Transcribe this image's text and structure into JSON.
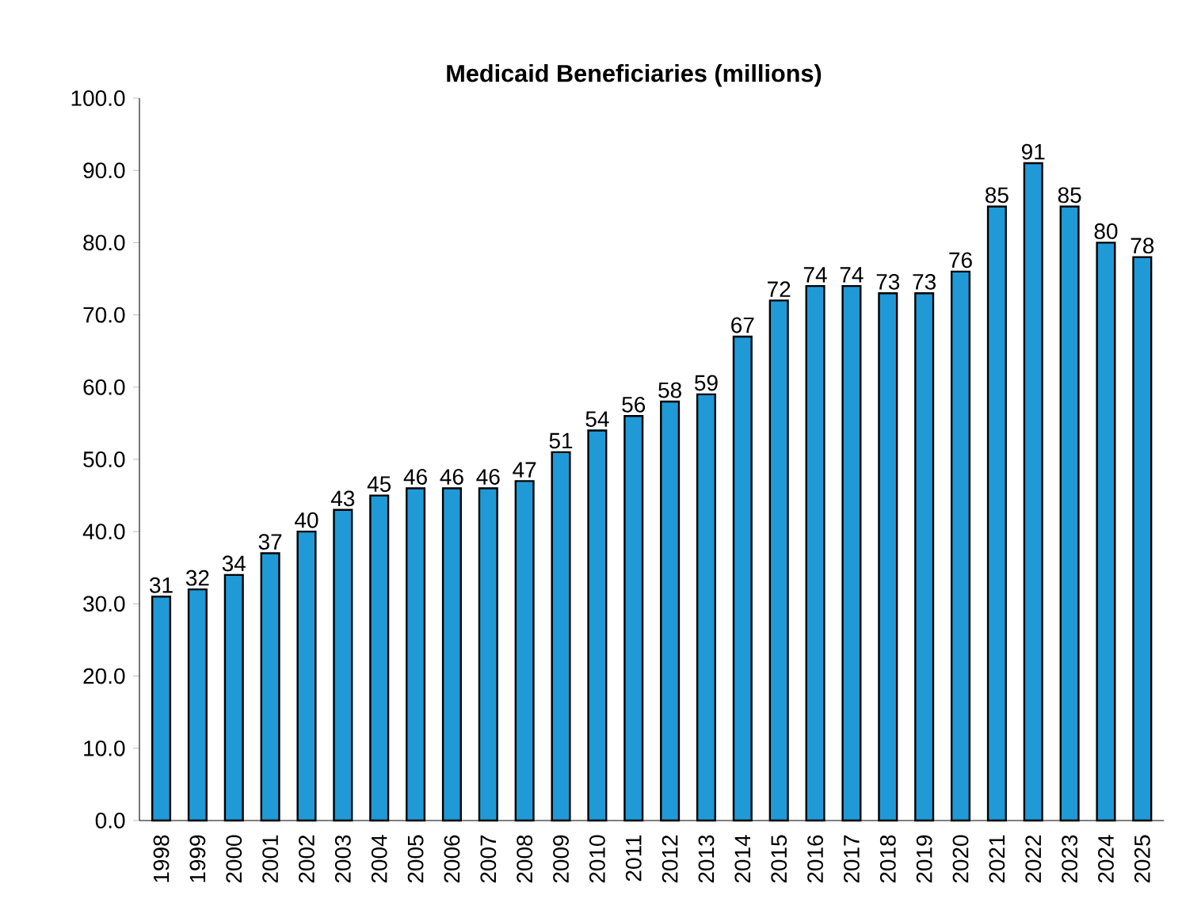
{
  "chart_data": {
    "type": "bar",
    "title": "Medicaid Beneficiaries (millions)",
    "categories": [
      "1998",
      "1999",
      "2000",
      "2001",
      "2002",
      "2003",
      "2004",
      "2005",
      "2006",
      "2007",
      "2008",
      "2009",
      "2010",
      "2011",
      "2012",
      "2013",
      "2014",
      "2015",
      "2016",
      "2017",
      "2018",
      "2019",
      "2020",
      "2021",
      "2022",
      "2023",
      "2024",
      "2025"
    ],
    "values": [
      31,
      32,
      34,
      37,
      40,
      43,
      45,
      46,
      46,
      46,
      47,
      51,
      54,
      56,
      58,
      59,
      67,
      72,
      74,
      74,
      73,
      73,
      76,
      85,
      91,
      85,
      80,
      78
    ],
    "color": "#1f9ad6",
    "data_labels": true,
    "ylim": [
      0,
      100
    ],
    "yticks": [
      {
        "value": 0,
        "label": "0.0"
      },
      {
        "value": 10,
        "label": "10.0"
      },
      {
        "value": 20,
        "label": "20.0"
      },
      {
        "value": 30,
        "label": "30.0"
      },
      {
        "value": 40,
        "label": "40.0"
      },
      {
        "value": 50,
        "label": "50.0"
      },
      {
        "value": 60,
        "label": "60.0"
      },
      {
        "value": 70,
        "label": "70.0"
      },
      {
        "value": 80,
        "label": "80.0"
      },
      {
        "value": 90,
        "label": "90.0"
      },
      {
        "value": 100,
        "label": "100.0"
      }
    ]
  }
}
